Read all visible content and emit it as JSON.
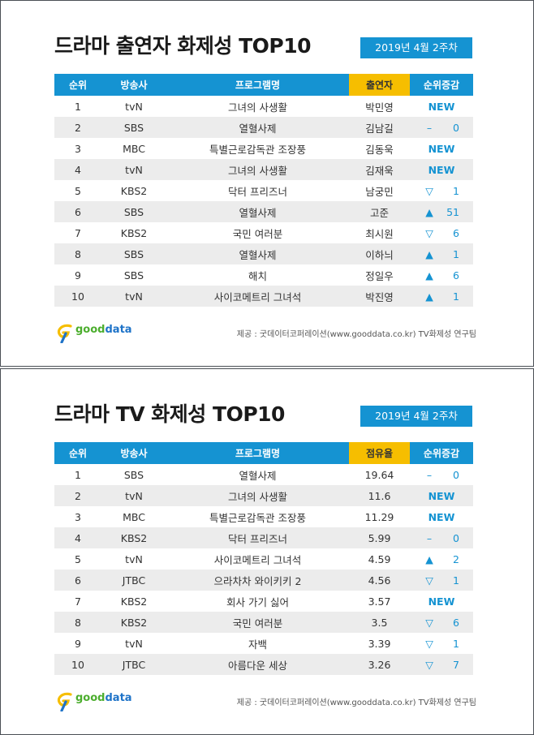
{
  "panel1": {
    "title": "드라마 출연자 화제성 TOP10",
    "week": "2019년  4월 2주차",
    "headers": [
      "순위",
      "방송사",
      "프로그램명",
      "출연자",
      "순위증감"
    ],
    "rows": [
      {
        "rank": "1",
        "channel": "tvN",
        "program": "그녀의 사생활",
        "value": "박민영",
        "change_type": "new",
        "change_text": "NEW"
      },
      {
        "rank": "2",
        "channel": "SBS",
        "program": "열혈사제",
        "value": "김남길",
        "change_type": "same",
        "change_symbol": "–",
        "change_num": "0"
      },
      {
        "rank": "3",
        "channel": "MBC",
        "program": "특별근로감독관 조장풍",
        "value": "김동욱",
        "change_type": "new",
        "change_text": "NEW"
      },
      {
        "rank": "4",
        "channel": "tvN",
        "program": "그녀의 사생활",
        "value": "김재욱",
        "change_type": "new",
        "change_text": "NEW"
      },
      {
        "rank": "5",
        "channel": "KBS2",
        "program": "닥터 프리즈너",
        "value": "남궁민",
        "change_type": "down",
        "change_symbol": "▽",
        "change_num": "1"
      },
      {
        "rank": "6",
        "channel": "SBS",
        "program": "열혈사제",
        "value": "고준",
        "change_type": "up",
        "change_symbol": "▲",
        "change_num": "51"
      },
      {
        "rank": "7",
        "channel": "KBS2",
        "program": "국민 여러분",
        "value": "최시원",
        "change_type": "down",
        "change_symbol": "▽",
        "change_num": "6"
      },
      {
        "rank": "8",
        "channel": "SBS",
        "program": "열혈사제",
        "value": "이하늬",
        "change_type": "up",
        "change_symbol": "▲",
        "change_num": "1"
      },
      {
        "rank": "9",
        "channel": "SBS",
        "program": "해치",
        "value": "정일우",
        "change_type": "up",
        "change_symbol": "▲",
        "change_num": "6"
      },
      {
        "rank": "10",
        "channel": "tvN",
        "program": "사이코메트리 그녀석",
        "value": "박진영",
        "change_type": "up",
        "change_symbol": "▲",
        "change_num": "1"
      }
    ],
    "logo": {
      "part1": "good",
      "part2": "data"
    },
    "source": "제공 : 굿데이터코퍼레이션(www.gooddata.co.kr) TV화제성 연구팀"
  },
  "panel2": {
    "title": "드라마 TV 화제성 TOP10",
    "week": "2019년  4월 2주차",
    "headers": [
      "순위",
      "방송사",
      "프로그램명",
      "점유율",
      "순위증감"
    ],
    "rows": [
      {
        "rank": "1",
        "channel": "SBS",
        "program": "열혈사제",
        "value": "19.64",
        "change_type": "same",
        "change_symbol": "–",
        "change_num": "0"
      },
      {
        "rank": "2",
        "channel": "tvN",
        "program": "그녀의 사생활",
        "value": "11.6",
        "change_type": "new",
        "change_text": "NEW"
      },
      {
        "rank": "3",
        "channel": "MBC",
        "program": "특별근로감독관 조장풍",
        "value": "11.29",
        "change_type": "new",
        "change_text": "NEW"
      },
      {
        "rank": "4",
        "channel": "KBS2",
        "program": "닥터 프리즈너",
        "value": "5.99",
        "change_type": "same",
        "change_symbol": "–",
        "change_num": "0"
      },
      {
        "rank": "5",
        "channel": "tvN",
        "program": "사이코메트리 그녀석",
        "value": "4.59",
        "change_type": "up",
        "change_symbol": "▲",
        "change_num": "2"
      },
      {
        "rank": "6",
        "channel": "JTBC",
        "program": "으라차차 와이키키 2",
        "value": "4.56",
        "change_type": "down",
        "change_symbol": "▽",
        "change_num": "1"
      },
      {
        "rank": "7",
        "channel": "KBS2",
        "program": "회사 가기 싫어",
        "value": "3.57",
        "change_type": "new",
        "change_text": "NEW"
      },
      {
        "rank": "8",
        "channel": "KBS2",
        "program": "국민 여러분",
        "value": "3.5",
        "change_type": "down",
        "change_symbol": "▽",
        "change_num": "6"
      },
      {
        "rank": "9",
        "channel": "tvN",
        "program": "자백",
        "value": "3.39",
        "change_type": "down",
        "change_symbol": "▽",
        "change_num": "1"
      },
      {
        "rank": "10",
        "channel": "JTBC",
        "program": "아름다운 세상",
        "value": "3.26",
        "change_type": "down",
        "change_symbol": "▽",
        "change_num": "7"
      }
    ],
    "logo": {
      "part1": "good",
      "part2": "data"
    },
    "source": "제공 : 굿데이터코퍼레이션(www.gooddata.co.kr) TV화제성 연구팀"
  },
  "colors": {
    "header_blue": "#1593d2",
    "header_yellow": "#f6be00",
    "row_stripe": "#ececec",
    "change_blue": "#1593d2"
  }
}
